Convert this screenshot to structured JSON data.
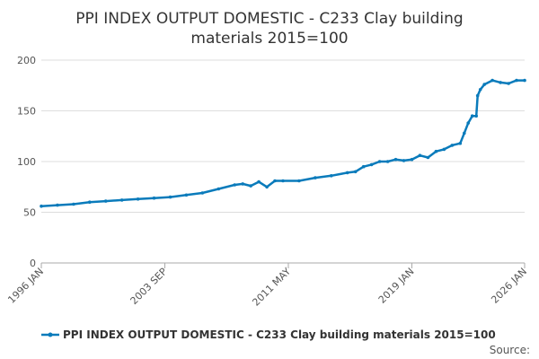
{
  "chart_data": {
    "type": "line",
    "title_lines": [
      "PPI INDEX OUTPUT DOMESTIC - C233 Clay building",
      "materials 2015=100"
    ],
    "xlabel": "",
    "ylabel": "",
    "x_tick_labels": [
      "1996 JAN",
      "2003 SEP",
      "2011 MAY",
      "2019 JAN",
      "2026 JAN"
    ],
    "x_ticks": [
      "1996-01",
      "2003-09",
      "2011-05",
      "2019-01",
      "2026-01"
    ],
    "xlim": [
      "1996-01",
      "2026-01"
    ],
    "y_ticks": [
      0,
      50,
      100,
      150,
      200
    ],
    "ylim": [
      0,
      200
    ],
    "grid": true,
    "legend_position": "bottom",
    "series": [
      {
        "name": "PPI INDEX OUTPUT DOMESTIC - C233 Clay building materials 2015=100",
        "color": "#0a7bbb",
        "x": [
          "1996-01",
          "1997-01",
          "1998-01",
          "1999-01",
          "2000-01",
          "2001-01",
          "2002-01",
          "2003-01",
          "2004-01",
          "2005-01",
          "2006-01",
          "2007-01",
          "2008-01",
          "2008-07",
          "2009-01",
          "2009-07",
          "2010-01",
          "2010-07",
          "2011-01",
          "2012-01",
          "2013-01",
          "2014-01",
          "2015-01",
          "2015-07",
          "2016-01",
          "2016-07",
          "2017-01",
          "2017-07",
          "2018-01",
          "2018-07",
          "2019-01",
          "2019-07",
          "2020-01",
          "2020-07",
          "2021-01",
          "2021-07",
          "2022-01",
          "2022-04",
          "2022-07",
          "2022-10",
          "2023-01",
          "2023-02",
          "2023-04",
          "2023-07",
          "2024-01",
          "2024-07",
          "2025-01",
          "2025-07",
          "2026-01"
        ],
        "values": [
          56,
          57,
          58,
          60,
          61,
          62,
          63,
          64,
          65,
          67,
          69,
          73,
          77,
          78,
          76,
          80,
          75,
          81,
          81,
          81,
          84,
          86,
          89,
          90,
          95,
          97,
          100,
          100,
          102,
          101,
          102,
          106,
          104,
          110,
          112,
          116,
          118,
          128,
          138,
          145,
          145,
          165,
          171,
          176,
          180,
          178,
          177,
          180,
          180
        ]
      }
    ]
  },
  "source": {
    "label": "Source:"
  }
}
